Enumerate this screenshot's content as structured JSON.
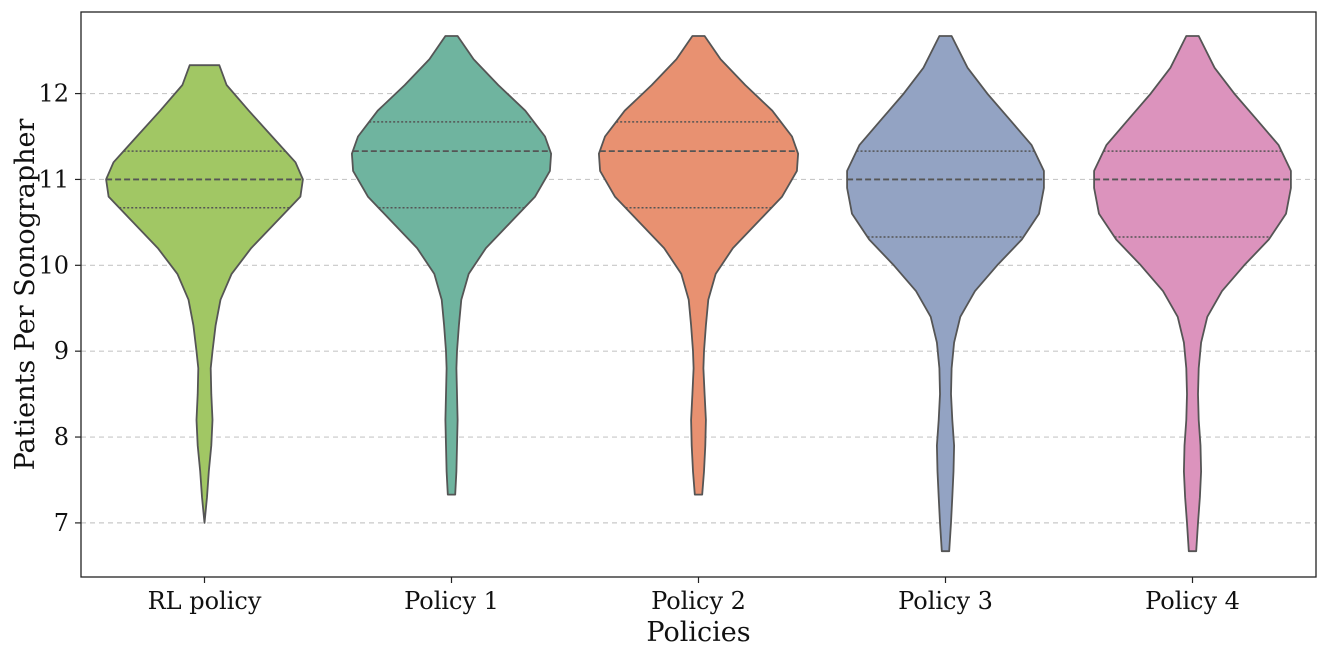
{
  "chart_data": {
    "type": "violin",
    "title": "",
    "xlabel": "Policies",
    "ylabel": "Patients Per Sonographer",
    "ylim": [
      6.37,
      12.95
    ],
    "yticks": [
      7,
      8,
      9,
      10,
      11,
      12
    ],
    "grid": "horizontal-dashed",
    "colors": {
      "outline": "#555555",
      "grid": "#c8c8c8",
      "frame": "#222222"
    },
    "categories": [
      "RL policy",
      "Policy 1",
      "Policy 2",
      "Policy 3",
      "Policy 4"
    ],
    "series": [
      {
        "category": "RL policy",
        "color": "#a1c764",
        "min": 7.0,
        "max": 12.33,
        "quartiles": [
          10.67,
          11.0,
          11.33
        ],
        "profile": [
          [
            7.0,
            0.0
          ],
          [
            7.3,
            0.02
          ],
          [
            7.6,
            0.035
          ],
          [
            7.9,
            0.055
          ],
          [
            8.2,
            0.065
          ],
          [
            8.5,
            0.055
          ],
          [
            8.8,
            0.05
          ],
          [
            9.0,
            0.065
          ],
          [
            9.3,
            0.09
          ],
          [
            9.6,
            0.13
          ],
          [
            9.9,
            0.22
          ],
          [
            10.2,
            0.38
          ],
          [
            10.5,
            0.58
          ],
          [
            10.8,
            0.78
          ],
          [
            11.0,
            0.8
          ],
          [
            11.2,
            0.74
          ],
          [
            11.5,
            0.55
          ],
          [
            11.8,
            0.36
          ],
          [
            12.1,
            0.18
          ],
          [
            12.33,
            0.12
          ]
        ]
      },
      {
        "category": "Policy 1",
        "color": "#6fb49f",
        "min": 7.33,
        "max": 12.67,
        "quartiles": [
          10.67,
          11.33,
          11.67
        ],
        "profile": [
          [
            7.33,
            0.03
          ],
          [
            7.6,
            0.04
          ],
          [
            7.9,
            0.045
          ],
          [
            8.2,
            0.05
          ],
          [
            8.5,
            0.045
          ],
          [
            8.8,
            0.04
          ],
          [
            9.0,
            0.045
          ],
          [
            9.3,
            0.06
          ],
          [
            9.6,
            0.08
          ],
          [
            9.9,
            0.14
          ],
          [
            10.2,
            0.28
          ],
          [
            10.5,
            0.48
          ],
          [
            10.8,
            0.68
          ],
          [
            11.1,
            0.8
          ],
          [
            11.3,
            0.81
          ],
          [
            11.5,
            0.76
          ],
          [
            11.8,
            0.6
          ],
          [
            12.1,
            0.38
          ],
          [
            12.4,
            0.18
          ],
          [
            12.67,
            0.05
          ]
        ]
      },
      {
        "category": "Policy 2",
        "color": "#e89171",
        "min": 7.33,
        "max": 12.67,
        "quartiles": [
          10.67,
          11.33,
          11.67
        ],
        "profile": [
          [
            7.33,
            0.03
          ],
          [
            7.6,
            0.045
          ],
          [
            7.9,
            0.055
          ],
          [
            8.2,
            0.06
          ],
          [
            8.5,
            0.05
          ],
          [
            8.8,
            0.04
          ],
          [
            9.0,
            0.045
          ],
          [
            9.3,
            0.06
          ],
          [
            9.6,
            0.08
          ],
          [
            9.9,
            0.14
          ],
          [
            10.2,
            0.28
          ],
          [
            10.5,
            0.48
          ],
          [
            10.8,
            0.68
          ],
          [
            11.1,
            0.8
          ],
          [
            11.3,
            0.81
          ],
          [
            11.5,
            0.76
          ],
          [
            11.8,
            0.6
          ],
          [
            12.1,
            0.38
          ],
          [
            12.4,
            0.18
          ],
          [
            12.67,
            0.05
          ]
        ]
      },
      {
        "category": "Policy 3",
        "color": "#93a3c3",
        "min": 6.67,
        "max": 12.67,
        "quartiles": [
          10.33,
          11.0,
          11.33
        ],
        "profile": [
          [
            6.67,
            0.03
          ],
          [
            7.0,
            0.045
          ],
          [
            7.3,
            0.055
          ],
          [
            7.6,
            0.065
          ],
          [
            7.9,
            0.07
          ],
          [
            8.2,
            0.055
          ],
          [
            8.5,
            0.045
          ],
          [
            8.8,
            0.05
          ],
          [
            9.1,
            0.07
          ],
          [
            9.4,
            0.12
          ],
          [
            9.7,
            0.24
          ],
          [
            10.0,
            0.42
          ],
          [
            10.3,
            0.62
          ],
          [
            10.6,
            0.76
          ],
          [
            10.9,
            0.8
          ],
          [
            11.1,
            0.8
          ],
          [
            11.4,
            0.7
          ],
          [
            11.7,
            0.52
          ],
          [
            12.0,
            0.34
          ],
          [
            12.3,
            0.18
          ],
          [
            12.67,
            0.05
          ]
        ]
      },
      {
        "category": "Policy 4",
        "color": "#dc93bd",
        "min": 6.67,
        "max": 12.67,
        "quartiles": [
          10.33,
          11.0,
          11.33
        ],
        "profile": [
          [
            6.67,
            0.03
          ],
          [
            7.0,
            0.045
          ],
          [
            7.3,
            0.06
          ],
          [
            7.6,
            0.07
          ],
          [
            7.9,
            0.065
          ],
          [
            8.2,
            0.05
          ],
          [
            8.5,
            0.045
          ],
          [
            8.8,
            0.05
          ],
          [
            9.1,
            0.07
          ],
          [
            9.4,
            0.12
          ],
          [
            9.7,
            0.24
          ],
          [
            10.0,
            0.42
          ],
          [
            10.3,
            0.62
          ],
          [
            10.6,
            0.76
          ],
          [
            10.9,
            0.8
          ],
          [
            11.1,
            0.8
          ],
          [
            11.4,
            0.7
          ],
          [
            11.7,
            0.52
          ],
          [
            12.0,
            0.34
          ],
          [
            12.3,
            0.18
          ],
          [
            12.67,
            0.05
          ]
        ]
      }
    ]
  }
}
